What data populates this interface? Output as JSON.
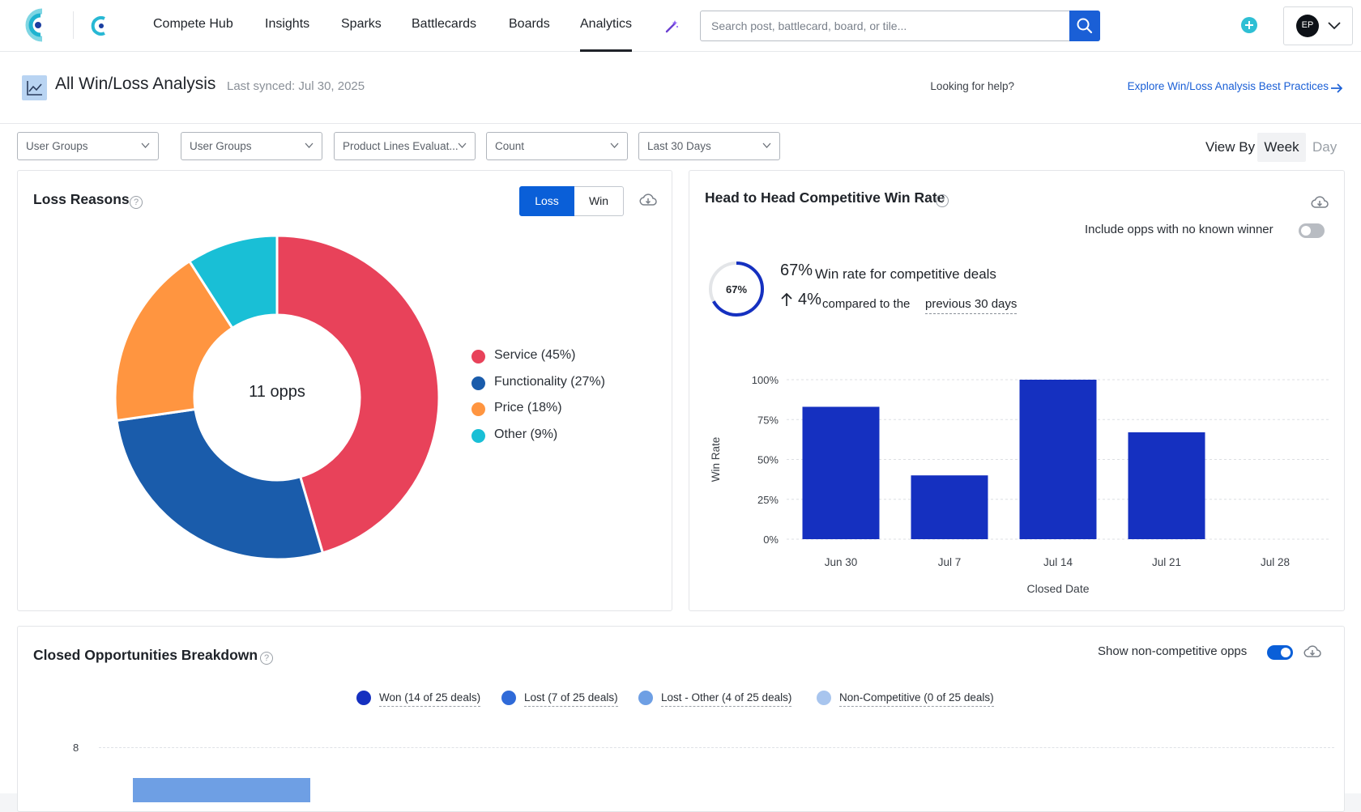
{
  "nav": {
    "items": [
      "Compete Hub",
      "Insights",
      "Sparks",
      "Battlecards",
      "Boards",
      "Analytics"
    ],
    "active": "Analytics",
    "search_placeholder": "Search post, battlecard, board, or tile...",
    "avatar_initials": "EP"
  },
  "header": {
    "title": "All Win/Loss Analysis",
    "last_synced": "Last synced: Jul 30, 2025",
    "help_prefix": "Looking for help?",
    "help_link": "Explore Win/Loss Analysis Best Practices"
  },
  "filters": [
    "User Groups",
    "User Groups",
    "Product Lines Evaluat...",
    "Count",
    "Last 30 Days"
  ],
  "view_by": {
    "label": "View By",
    "week": "Week",
    "day": "Day",
    "selected": "Week"
  },
  "loss_reasons": {
    "title": "Loss Reasons",
    "toggle_loss": "Loss",
    "toggle_win": "Win",
    "center_label": "11 opps",
    "legend": [
      "Service (45%)",
      "Functionality (27%)",
      "Price (18%)",
      "Other (9%)"
    ]
  },
  "head_to_head": {
    "title": "Head to Head Competitive Win Rate",
    "include_label": "Include opps with no known winner",
    "include_on": false,
    "gauge_label": "67%",
    "win_rate_big": "67%",
    "win_rate_text": "Win rate for competitive deals",
    "delta_big": "4%",
    "delta_text": "compared to the",
    "delta_link": "previous 30 days",
    "y_label": "Win Rate",
    "x_label": "Closed Date"
  },
  "closed_opps": {
    "title": "Closed Opportunities Breakdown",
    "show_label": "Show non-competitive opps",
    "show_on": true,
    "legend": [
      {
        "label": "Won (14 of 25 deals)",
        "color": "#1530c0"
      },
      {
        "label": "Lost (7 of 25 deals)",
        "color": "#2f6ad8"
      },
      {
        "label": "Lost - Other (4 of 25 deals)",
        "color": "#6e9fe4"
      },
      {
        "label": "Non-Competitive (0 of 25 deals)",
        "color": "#a8c5ee"
      }
    ],
    "y_tick": "8"
  },
  "chart_data": [
    {
      "type": "pie",
      "title": "Loss Reasons",
      "categories": [
        "Service",
        "Functionality",
        "Price",
        "Other"
      ],
      "values": [
        45,
        27,
        18,
        9
      ],
      "colors": [
        "#e8425a",
        "#1a5cab",
        "#ff9540",
        "#19bfd6"
      ],
      "center_text": "11 opps"
    },
    {
      "type": "bar",
      "title": "Head to Head Competitive Win Rate",
      "categories": [
        "Jun 30",
        "Jul 7",
        "Jul 14",
        "Jul 21",
        "Jul 28"
      ],
      "values": [
        83,
        40,
        100,
        67,
        null
      ],
      "ylabel": "Win Rate",
      "xlabel": "Closed Date",
      "ylim": [
        0,
        100
      ],
      "yticks": [
        "0%",
        "25%",
        "50%",
        "75%",
        "100%"
      ],
      "color": "#1530c0"
    }
  ]
}
